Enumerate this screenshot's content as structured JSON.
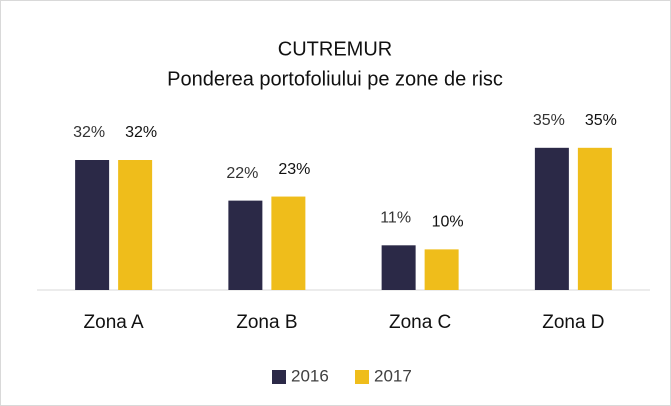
{
  "chart_data": {
    "type": "bar",
    "title": "CUTREMUR",
    "subtitle": "Ponderea portofoliului pe zone de risc",
    "categories": [
      "Zona A",
      "Zona B",
      "Zona C",
      "Zona D"
    ],
    "series": [
      {
        "name": "2016",
        "color": "#2b2947",
        "values": [
          32,
          22,
          11,
          35
        ],
        "value_labels": [
          "32%",
          "22%",
          "11%",
          "35%"
        ]
      },
      {
        "name": "2017",
        "color": "#efbd1b",
        "values": [
          32,
          23,
          10,
          35
        ],
        "value_labels": [
          "32%",
          "23%",
          "10%",
          "35%"
        ]
      }
    ],
    "ylim": [
      0,
      40
    ],
    "legend": "bottom"
  }
}
